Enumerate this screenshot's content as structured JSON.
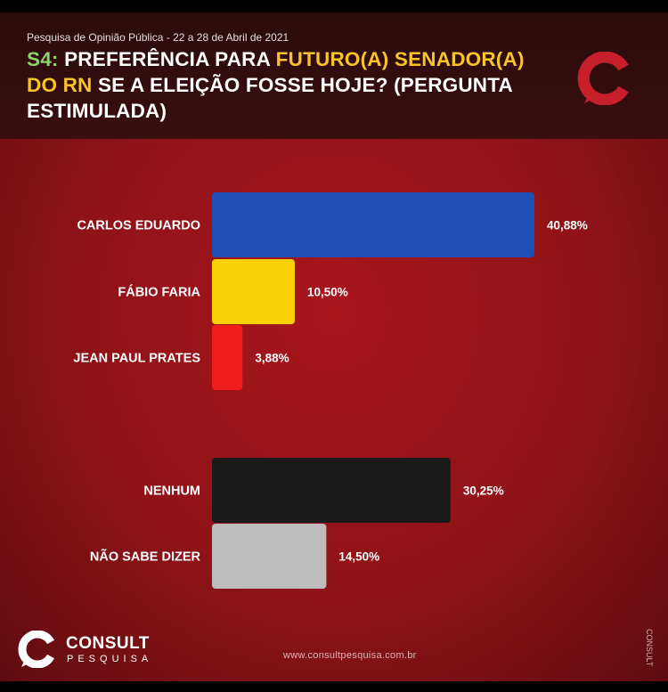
{
  "header": {
    "subtitle": "Pesquisa de Opinião Pública - 22 a 28 de Abril de 2021",
    "title_parts": {
      "code": "S4:",
      "text1": " PREFERÊNCIA PARA ",
      "highlight1": "FUTURO(A) SENADOR(A) DO RN",
      "text2": " SE A ELEIÇÃO FOSSE HOJE? (PERGUNTA ESTIMULADA)"
    }
  },
  "chart_data": {
    "type": "bar",
    "orientation": "horizontal",
    "title": "S4: PREFERÊNCIA PARA FUTURO(A) SENADOR(A) DO RN SE A ELEIÇÃO FOSSE HOJE? (PERGUNTA ESTIMULADA)",
    "categories": [
      "CARLOS EDUARDO",
      "FÁBIO FARIA",
      "JEAN PAUL PRATES",
      "NENHUM",
      "NÃO SABE DIZER"
    ],
    "values": [
      40.88,
      10.5,
      3.88,
      30.25,
      14.5
    ],
    "value_labels": [
      "40,88%",
      "10,50%",
      "3,88%",
      "30,25%",
      "14,50%"
    ],
    "colors": [
      "#1f4fb4",
      "#f9d10a",
      "#ee1c1c",
      "#1b1a1b",
      "#bdbdbd"
    ],
    "grid": false,
    "legend": "none",
    "xlabel": "",
    "ylabel": ""
  },
  "footer": {
    "brand": "CONSULT",
    "brand_sub": "PESQUISA",
    "website": "www.consultpesquisa.com.br"
  },
  "colors": {
    "background_red": "#9a1419",
    "header_dark": "#2f0c0e",
    "accent_green": "#8fd36b",
    "accent_yellow": "#f7c42a",
    "logo_red": "#c8202a"
  },
  "icons": {
    "top_logo": "consult-logo-icon",
    "footer_logo": "consult-logo-icon"
  }
}
